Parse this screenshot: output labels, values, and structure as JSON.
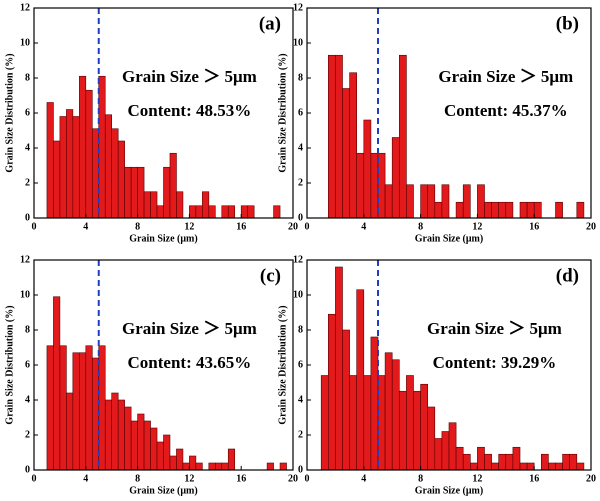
{
  "chart_data": [
    {
      "type": "histogram",
      "label": "(a)",
      "annotations": [
        "Grain Size ＞ 5μm",
        "Content: 48.53%"
      ],
      "xlabel": "Grain Size (μm)",
      "ylabel": "Grain Size Distribution (%)",
      "bins": [
        1,
        1.5,
        2,
        2.5,
        3,
        3.5,
        4,
        4.5,
        5,
        5.5,
        6,
        6.5,
        7,
        7.5,
        8,
        8.5,
        9,
        9.5,
        10,
        10.5,
        11,
        11.5,
        12,
        12.5,
        13,
        13.5,
        14,
        14.5,
        15,
        15.5,
        16,
        16.5,
        17,
        17.5,
        18,
        18.5,
        19
      ],
      "values": [
        6.6,
        4.4,
        5.8,
        6.2,
        5.8,
        8.1,
        7.3,
        5.1,
        8.1,
        5.9,
        5.1,
        4.4,
        2.9,
        2.9,
        2.9,
        1.5,
        1.5,
        0.7,
        2.9,
        3.7,
        1.5,
        0,
        0.7,
        0.7,
        1.5,
        0.7,
        0,
        0.7,
        0.7,
        0,
        0.7,
        0.7,
        0,
        0,
        0,
        0.7
      ],
      "color": "#e31a1c",
      "threshold": 5,
      "threshold_color": "#1f3fbf",
      "xlim": [
        0,
        20
      ],
      "xticks": [
        0,
        4,
        8,
        12,
        16,
        20
      ],
      "ylim": [
        0,
        12
      ],
      "yticks": [
        0,
        2,
        4,
        6,
        8,
        10,
        12
      ]
    },
    {
      "type": "histogram",
      "label": "(b)",
      "annotations": [
        "Grain Size ＞ 5μm",
        "Content: 45.37%"
      ],
      "xlabel": "Grain Size (μm)",
      "ylabel": "Grain Size Distribution (%)",
      "bins": [
        1.5,
        2,
        2.5,
        3,
        3.5,
        4,
        4.5,
        5,
        5.5,
        6,
        6.5,
        7,
        7.5,
        8,
        8.5,
        9,
        9.5,
        10,
        10.5,
        11,
        11.5,
        12,
        12.5,
        13,
        13.5,
        14,
        14.5,
        15,
        15.5,
        16,
        16.5,
        17,
        17.5,
        18,
        18.5,
        19,
        19.5
      ],
      "values": [
        9.3,
        9.3,
        7.4,
        8.3,
        3.7,
        5.6,
        3.7,
        3.7,
        1.9,
        4.6,
        9.3,
        1.9,
        0,
        1.9,
        1.9,
        0.9,
        1.9,
        0,
        0.9,
        1.9,
        0,
        1.9,
        0.9,
        0.9,
        0.9,
        0.9,
        0,
        0.9,
        0.9,
        0.9,
        0,
        0,
        0.9,
        0,
        0,
        0.9
      ],
      "color": "#e31a1c",
      "threshold": 5,
      "threshold_color": "#1f3fbf",
      "xlim": [
        0,
        20
      ],
      "xticks": [
        0,
        4,
        8,
        12,
        16,
        20
      ],
      "ylim": [
        0,
        12
      ],
      "yticks": [
        0,
        2,
        4,
        6,
        8,
        10,
        12
      ]
    },
    {
      "type": "histogram",
      "label": "(c)",
      "annotations": [
        "Grain Size ＞ 5μm",
        "Content: 43.65%"
      ],
      "xlabel": "Grain Size (μm)",
      "ylabel": "Grain Size Distribution (%)",
      "bins": [
        1,
        1.5,
        2,
        2.5,
        3,
        3.5,
        4,
        4.5,
        5,
        5.5,
        6,
        6.5,
        7,
        7.5,
        8,
        8.5,
        9,
        9.5,
        10,
        10.5,
        11,
        11.5,
        12,
        12.5,
        13,
        13.5,
        14,
        14.5,
        15,
        15.5,
        16,
        16.5,
        17,
        17.5,
        18,
        18.5,
        19,
        19.5
      ],
      "values": [
        7.1,
        9.9,
        7.1,
        4.4,
        6.7,
        6.7,
        7.1,
        6.4,
        7.1,
        4.0,
        4.4,
        4.0,
        3.6,
        2.8,
        3.2,
        2.8,
        2.4,
        1.6,
        2.0,
        0.8,
        1.2,
        0.4,
        0.8,
        0.4,
        0,
        0.4,
        0.4,
        0.4,
        1.2,
        0,
        0,
        0,
        0,
        0,
        0.4,
        0,
        0.4
      ],
      "color": "#e31a1c",
      "threshold": 5,
      "threshold_color": "#1f3fbf",
      "xlim": [
        0,
        20
      ],
      "xticks": [
        0,
        4,
        8,
        12,
        16,
        20
      ],
      "ylim": [
        0,
        12
      ],
      "yticks": [
        0,
        2,
        4,
        6,
        8,
        10,
        12
      ]
    },
    {
      "type": "histogram",
      "label": "(d)",
      "annotations": [
        "Grain Size ＞ 5μm",
        "Content: 39.29%"
      ],
      "xlabel": "Grain Size (μm)",
      "ylabel": "Grain Size Distribution (%)",
      "bins": [
        1,
        1.5,
        2,
        2.5,
        3,
        3.5,
        4,
        4.5,
        5,
        5.5,
        6,
        6.5,
        7,
        7.5,
        8,
        8.5,
        9,
        9.5,
        10,
        10.5,
        11,
        11.5,
        12,
        12.5,
        13,
        13.5,
        14,
        14.5,
        15,
        15.5,
        16,
        16.5,
        17,
        17.5,
        18,
        18.5,
        19,
        19.5
      ],
      "values": [
        5.4,
        8.9,
        11.6,
        8.0,
        5.4,
        10.3,
        5.4,
        7.6,
        5.4,
        6.7,
        6.3,
        4.5,
        5.4,
        4.5,
        4.9,
        3.6,
        1.8,
        2.2,
        2.7,
        1.3,
        0.9,
        0.4,
        1.3,
        0.9,
        0.4,
        0.9,
        0.9,
        1.3,
        0.4,
        0.4,
        0,
        0.9,
        0.4,
        0.4,
        0.9,
        0.9,
        0.4
      ],
      "color": "#e31a1c",
      "threshold": 5,
      "threshold_color": "#1f3fbf",
      "xlim": [
        0,
        20
      ],
      "xticks": [
        0,
        4,
        8,
        12,
        16,
        20
      ],
      "ylim": [
        0,
        12
      ],
      "yticks": [
        0,
        2,
        4,
        6,
        8,
        10,
        12
      ]
    }
  ]
}
